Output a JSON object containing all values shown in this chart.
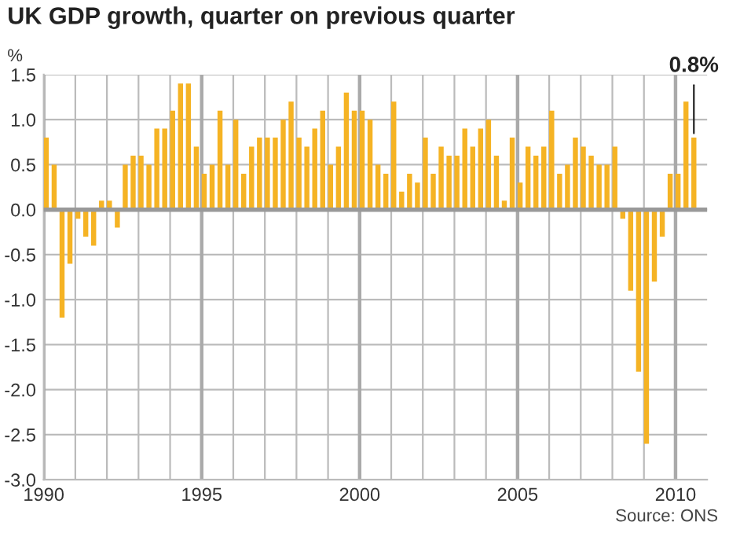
{
  "chart_data": {
    "type": "bar",
    "title": "UK GDP growth, quarter on previous quarter",
    "ylabel": "%",
    "x": [
      1990.0,
      1990.25,
      1990.5,
      1990.75,
      1991.0,
      1991.25,
      1991.5,
      1991.75,
      1992.0,
      1992.25,
      1992.5,
      1992.75,
      1993.0,
      1993.25,
      1993.5,
      1993.75,
      1994.0,
      1994.25,
      1994.5,
      1994.75,
      1995.0,
      1995.25,
      1995.5,
      1995.75,
      1996.0,
      1996.25,
      1996.5,
      1996.75,
      1997.0,
      1997.25,
      1997.5,
      1997.75,
      1998.0,
      1998.25,
      1998.5,
      1998.75,
      1999.0,
      1999.25,
      1999.5,
      1999.75,
      2000.0,
      2000.25,
      2000.5,
      2000.75,
      2001.0,
      2001.25,
      2001.5,
      2001.75,
      2002.0,
      2002.25,
      2002.5,
      2002.75,
      2003.0,
      2003.25,
      2003.5,
      2003.75,
      2004.0,
      2004.25,
      2004.5,
      2004.75,
      2005.0,
      2005.25,
      2005.5,
      2005.75,
      2006.0,
      2006.25,
      2006.5,
      2006.75,
      2007.0,
      2007.25,
      2007.5,
      2007.75,
      2008.0,
      2008.25,
      2008.5,
      2008.75,
      2009.0,
      2009.25,
      2009.5,
      2009.75,
      2010.0,
      2010.25,
      2010.5
    ],
    "values": [
      0.8,
      0.5,
      -1.2,
      -0.6,
      -0.1,
      -0.3,
      -0.4,
      0.1,
      0.1,
      -0.2,
      0.5,
      0.6,
      0.6,
      0.5,
      0.9,
      0.9,
      1.1,
      1.4,
      1.4,
      0.7,
      0.4,
      0.5,
      1.1,
      0.5,
      1.0,
      0.4,
      0.7,
      0.8,
      0.8,
      0.8,
      1.0,
      1.2,
      0.8,
      0.7,
      0.9,
      1.1,
      0.5,
      0.7,
      1.3,
      1.1,
      1.1,
      1.0,
      0.5,
      0.4,
      1.2,
      0.2,
      0.4,
      0.3,
      0.8,
      0.4,
      0.7,
      0.6,
      0.6,
      0.9,
      0.7,
      0.9,
      1.0,
      0.6,
      0.1,
      0.8,
      0.3,
      0.7,
      0.6,
      0.7,
      1.1,
      0.4,
      0.5,
      0.8,
      0.7,
      0.6,
      0.5,
      0.5,
      0.7,
      -0.1,
      -0.9,
      -1.8,
      -2.6,
      -0.8,
      -0.3,
      0.4,
      0.4,
      1.2,
      0.8
    ],
    "color": "#f5b324",
    "xlim": [
      1990,
      2011
    ],
    "xticks": [
      1990,
      {
        "value": 1991,
        "label": null
      },
      {
        "value": 1992,
        "label": null
      },
      {
        "value": 1993,
        "label": null
      },
      {
        "value": 1994,
        "label": null
      },
      1995,
      {
        "value": 1996,
        "label": null
      },
      {
        "value": 1997,
        "label": null
      },
      {
        "value": 1998,
        "label": null
      },
      {
        "value": 1999,
        "label": null
      },
      2000,
      {
        "value": 2001,
        "label": null
      },
      {
        "value": 2002,
        "label": null
      },
      {
        "value": 2003,
        "label": null
      },
      {
        "value": 2004,
        "label": null
      },
      2005,
      {
        "value": 2006,
        "label": null
      },
      {
        "value": 2007,
        "label": null
      },
      {
        "value": 2008,
        "label": null
      },
      {
        "value": 2009,
        "label": null
      },
      2010
    ],
    "ylim": [
      -3.0,
      1.5
    ],
    "yticks": [
      {
        "value": -3.0,
        "label": "-3.0"
      },
      {
        "value": -2.5,
        "label": "-2.5"
      },
      {
        "value": -2.0,
        "label": "-2.0"
      },
      {
        "value": -1.5,
        "label": "-1.5"
      },
      {
        "value": -1.0,
        "label": "-1.0"
      },
      {
        "value": -0.5,
        "label": "-0.5"
      },
      {
        "value": 0.0,
        "label": "0.0"
      },
      {
        "value": 0.5,
        "label": "0.5"
      },
      {
        "value": 1.0,
        "label": "1.0"
      },
      {
        "value": 1.5,
        "label": "1.5"
      }
    ],
    "ref_lines": [
      {
        "axis": "y",
        "value": 0,
        "label": null,
        "color": "#999999"
      }
    ],
    "grid": true,
    "annotations": [
      {
        "text": "0.8%",
        "x": 2010.5,
        "y": 0.8
      },
      "Source: ONS"
    ]
  }
}
